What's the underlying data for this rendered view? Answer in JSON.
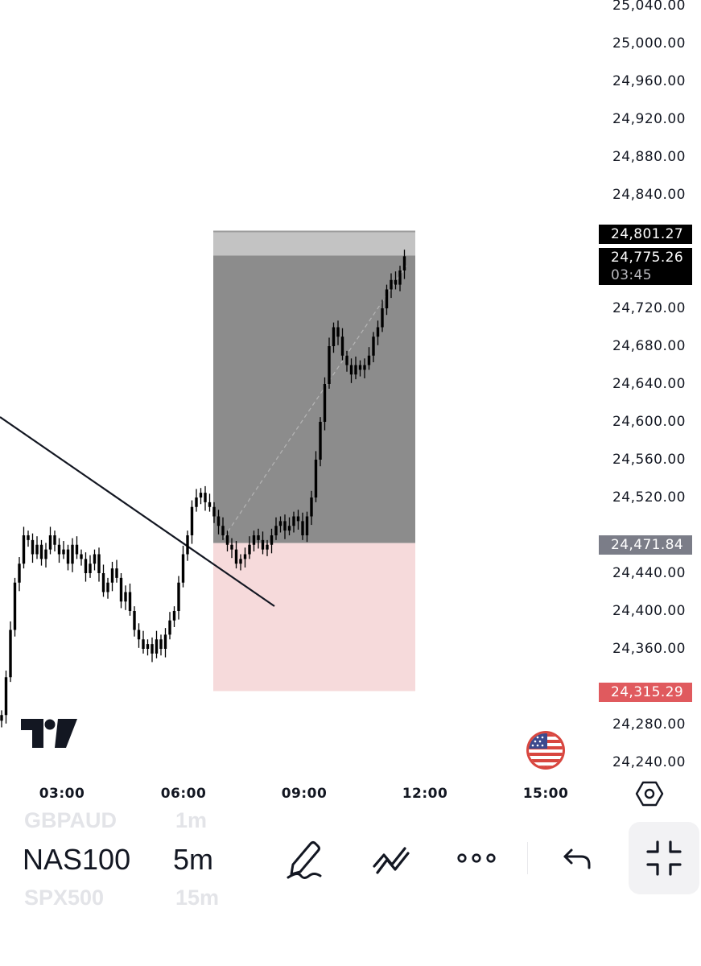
{
  "chart_data": {
    "type": "candlestick",
    "symbol": "NAS100",
    "timeframe": "5m",
    "y_axis_labels": [
      "25,040.00",
      "25,000.00",
      "24,960.00",
      "24,920.00",
      "24,880.00",
      "24,840.00",
      "24,720.00",
      "24,680.00",
      "24,640.00",
      "24,600.00",
      "24,560.00",
      "24,520.00",
      "24,440.00",
      "24,400.00",
      "24,360.00",
      "24,280.00",
      "24,240.00"
    ],
    "x_axis_labels": [
      "03:00",
      "06:00",
      "09:00",
      "12:00",
      "15:00"
    ],
    "ylim": [
      24220,
      25050
    ],
    "current_price": "24,775.26",
    "countdown": "03:45",
    "position": {
      "target": "24,801.27",
      "entry": "24,471.84",
      "stop": "24,315.29"
    },
    "trendline": {
      "from": [
        "~00:00",
        24600
      ],
      "to": [
        "~08:05",
        24408
      ]
    },
    "closes": [
      24290,
      24330,
      24380,
      24430,
      24450,
      24480,
      24475,
      24460,
      24470,
      24455,
      24465,
      24480,
      24470,
      24460,
      24465,
      24450,
      24470,
      24460,
      24455,
      24440,
      24450,
      24460,
      24440,
      24420,
      24430,
      24445,
      24435,
      24410,
      24420,
      24400,
      24380,
      24370,
      24360,
      24365,
      24355,
      24370,
      24360,
      24375,
      24390,
      24400,
      24430,
      24460,
      24480,
      24510,
      24520,
      24525,
      24515,
      24510,
      24500,
      24490,
      24480,
      24470,
      24465,
      24450,
      24455,
      24460,
      24470,
      24480,
      24475,
      24465,
      24470,
      24480,
      24490,
      24495,
      24485,
      24490,
      24500,
      24495,
      24480,
      24500,
      24520,
      24560,
      24600,
      24640,
      24680,
      24700,
      24690,
      24670,
      24660,
      24650,
      24660,
      24655,
      24660,
      24670,
      24690,
      24700,
      24720,
      24740,
      24750,
      24745,
      24760,
      24775
    ]
  },
  "colors": {
    "target_zone": "#8c8c8c",
    "target_band": "#c3c3c3",
    "stop_zone": "#f6dadb",
    "current_badge": "#000000",
    "entry_badge": "#7b7d88",
    "stop_badge": "#e05a5e"
  },
  "icons": {
    "logo": "tradingview-logo-icon",
    "flag": "us-flag-icon",
    "settings": "hexagon-settings-icon",
    "draw": "pencil-draw-icon",
    "patterns": "pattern-tool-icon",
    "more": "more-icon",
    "undo": "undo-icon",
    "collapse": "collapse-icon"
  },
  "toolbar": {
    "symbol_prev": "GBPAUD",
    "symbol_current": "NAS100",
    "symbol_next": "SPX500",
    "interval_prev": "1m",
    "interval_current": "5m",
    "interval_next": "15m"
  }
}
